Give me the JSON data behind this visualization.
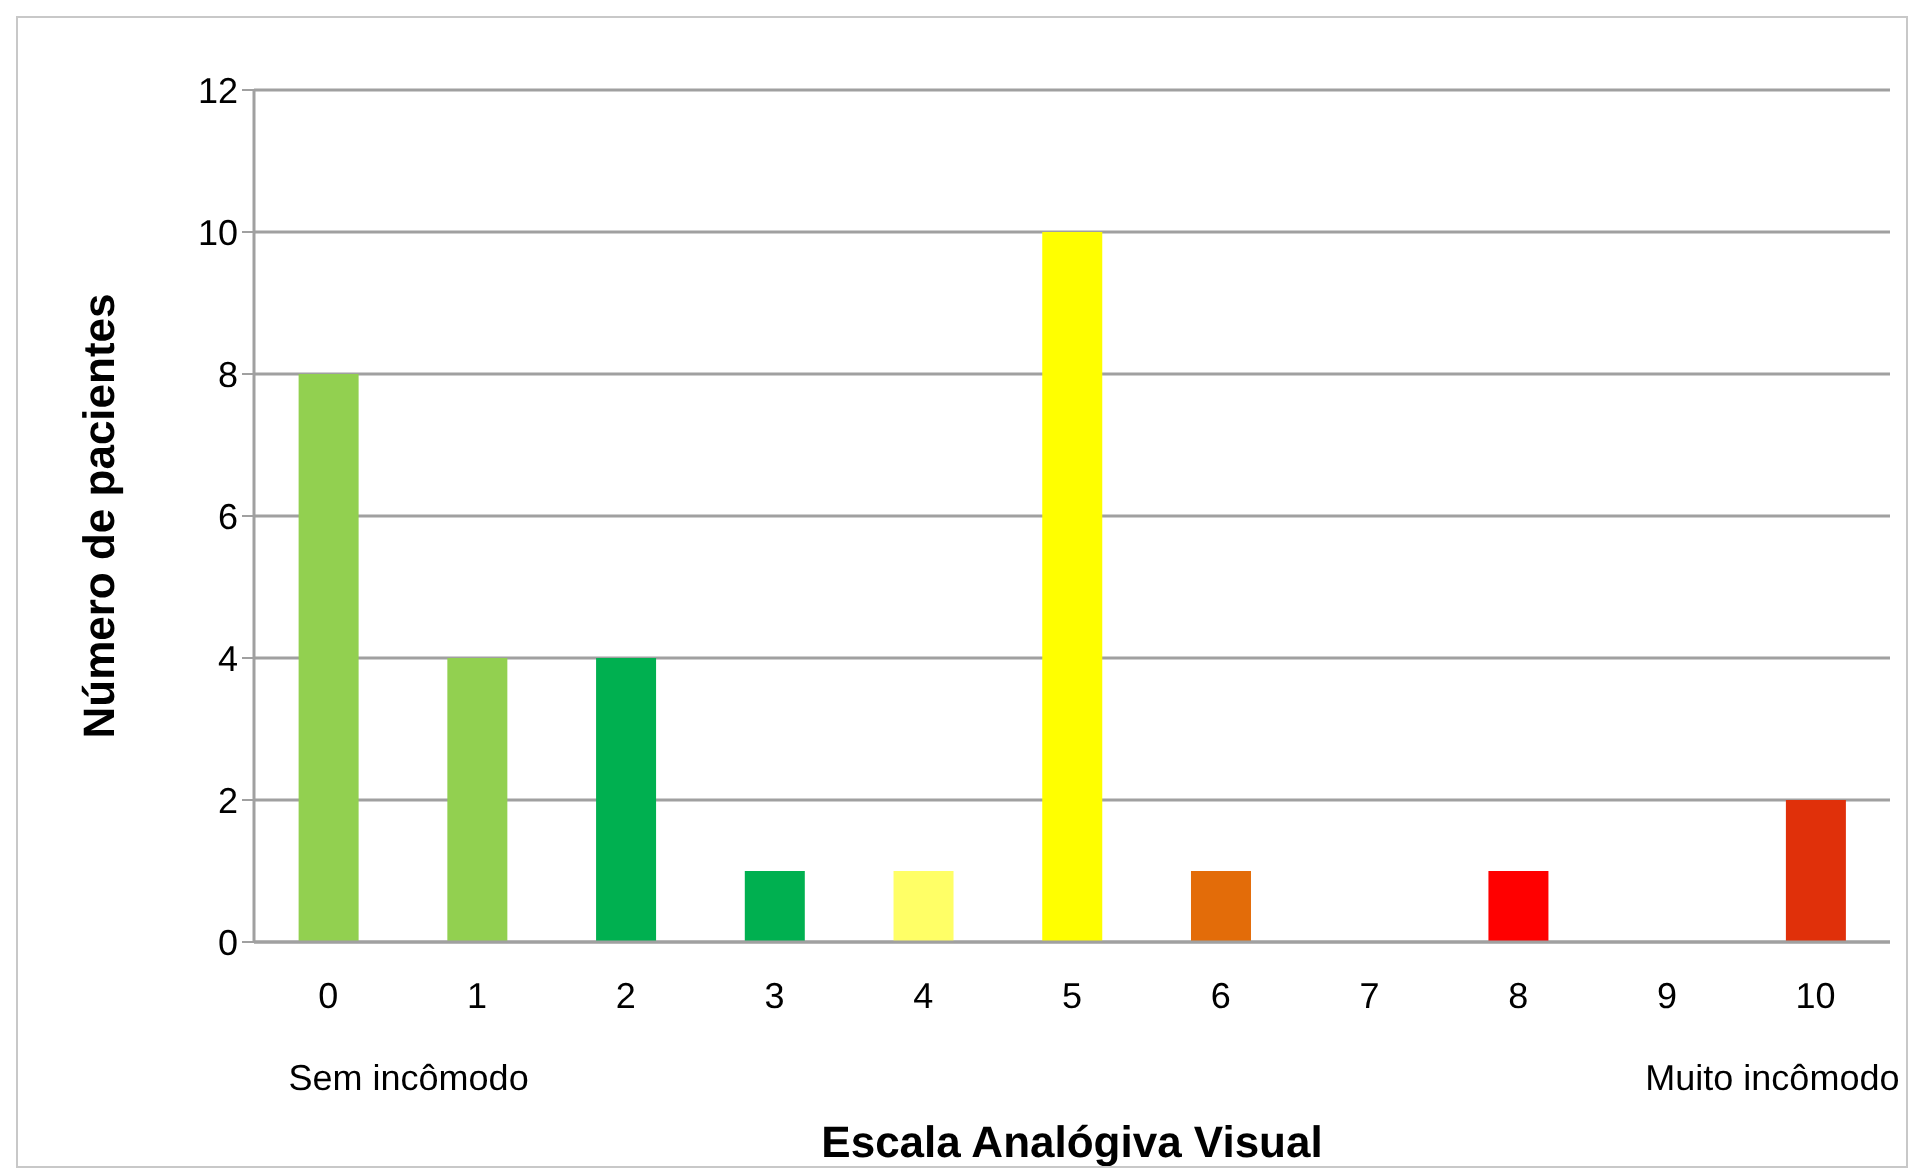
{
  "chart_data": {
    "type": "bar",
    "xlabel": "Escala Analógiva Visual",
    "ylabel": "Número de pacientes",
    "categories": [
      "0",
      "1",
      "2",
      "3",
      "4",
      "5",
      "6",
      "7",
      "8",
      "9",
      "10"
    ],
    "values": [
      8,
      4,
      4,
      1,
      1,
      10,
      1,
      0,
      1,
      0,
      2
    ],
    "colors": [
      "#92d050",
      "#92d050",
      "#00b050",
      "#00b050",
      "#ffff66",
      "#ffff00",
      "#e36c09",
      "#e36c09",
      "#ff0000",
      "#ff0000",
      "#e0300a"
    ],
    "ylim": [
      0,
      12
    ],
    "yticks": [
      0,
      2,
      4,
      6,
      8,
      10,
      12
    ],
    "grid": "y",
    "annotations": [
      "Sem incômodo",
      "Muito incômodo"
    ]
  }
}
